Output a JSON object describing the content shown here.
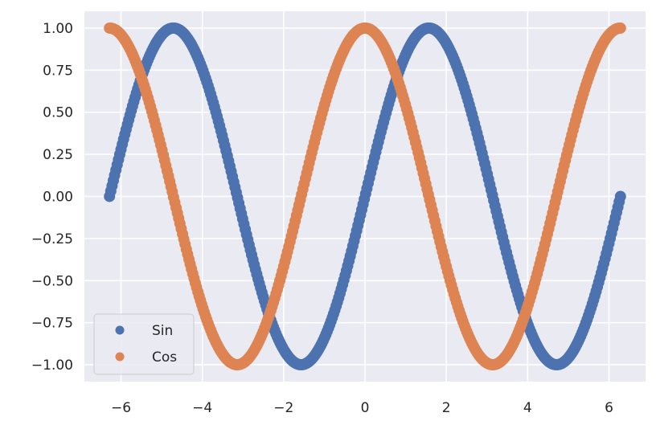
{
  "chart_data": {
    "type": "scatter",
    "title": "",
    "xlabel": "",
    "ylabel": "",
    "xlim": [
      -6.9,
      6.9
    ],
    "ylim": [
      -1.1,
      1.1
    ],
    "xticks": [
      -6,
      -4,
      -2,
      0,
      2,
      4,
      6
    ],
    "xtick_labels": [
      "−6",
      "−4",
      "−2",
      "0",
      "2",
      "4",
      "6"
    ],
    "yticks": [
      1.0,
      0.75,
      0.5,
      0.25,
      0.0,
      -0.25,
      -0.5,
      -0.75,
      -1.0
    ],
    "ytick_labels": [
      "1.00",
      "0.75",
      "0.50",
      "0.25",
      "0.00",
      "−0.25",
      "−0.50",
      "−0.75",
      "−1.00"
    ],
    "grid": true,
    "legend_position": "lower-left",
    "x_range": [
      -6.283,
      6.283
    ],
    "point_count": 400,
    "series": [
      {
        "name": "Sin",
        "function": "sin(x)",
        "color": "#4c72b0"
      },
      {
        "name": "Cos",
        "function": "cos(x)",
        "color": "#dd8452"
      }
    ]
  },
  "colors": {
    "plot_background": "#eaeaf2",
    "grid": "#ffffff",
    "text": "#262626"
  }
}
